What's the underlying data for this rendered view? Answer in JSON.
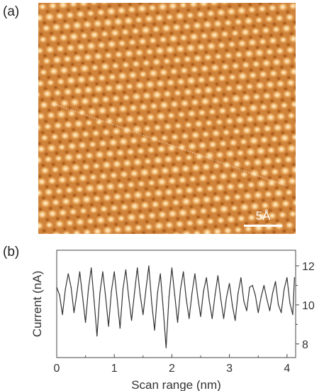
{
  "figure": {
    "panel_a_label": "(a)",
    "panel_b_label": "(b)",
    "scale_bar_label": "5Å"
  },
  "colors": {
    "stm_dark": "#b45f16",
    "stm_mid": "#e39a4c",
    "stm_light": "#fff3d6",
    "trace": "#333333"
  },
  "chart_data": {
    "type": "line",
    "xlabel": "Scan range (nm)",
    "ylabel": "Current (nA)",
    "xlim": [
      0,
      4.15
    ],
    "ylim": [
      7.3,
      12.8
    ],
    "x_ticks": [
      0,
      1,
      2,
      3,
      4
    ],
    "y_ticks": [
      8,
      10,
      12
    ],
    "y_axis_side": "right",
    "grid": false,
    "series": [
      {
        "x": [
          0.0,
          0.05,
          0.1,
          0.15,
          0.2,
          0.25,
          0.3,
          0.35,
          0.4,
          0.45,
          0.5,
          0.55,
          0.6,
          0.65,
          0.7,
          0.75,
          0.8,
          0.85,
          0.9,
          0.95,
          1.0,
          1.05,
          1.1,
          1.15,
          1.2,
          1.25,
          1.3,
          1.35,
          1.4,
          1.45,
          1.5,
          1.55,
          1.6,
          1.65,
          1.7,
          1.75,
          1.8,
          1.85,
          1.9,
          1.95,
          2.0,
          2.05,
          2.1,
          2.15,
          2.2,
          2.25,
          2.3,
          2.35,
          2.4,
          2.45,
          2.5,
          2.55,
          2.6,
          2.65,
          2.7,
          2.75,
          2.8,
          2.85,
          2.9,
          2.95,
          3.0,
          3.05,
          3.1,
          3.15,
          3.2,
          3.25,
          3.3,
          3.35,
          3.4,
          3.45,
          3.5,
          3.55,
          3.6,
          3.65,
          3.7,
          3.75,
          3.8,
          3.85,
          3.9,
          3.95,
          4.0,
          4.05,
          4.1,
          4.13
        ],
        "y": [
          10.9,
          10.5,
          9.5,
          10.8,
          11.6,
          10.9,
          9.6,
          10.6,
          11.7,
          10.4,
          9.1,
          10.8,
          11.9,
          10.2,
          8.4,
          10.6,
          11.7,
          10.4,
          8.9,
          10.7,
          11.7,
          10.3,
          8.8,
          10.8,
          11.8,
          10.4,
          9.2,
          10.6,
          11.9,
          10.5,
          9.5,
          10.8,
          12.0,
          10.1,
          8.7,
          10.6,
          11.6,
          9.8,
          7.8,
          10.4,
          11.9,
          10.5,
          9.1,
          10.8,
          11.7,
          10.3,
          9.3,
          10.6,
          11.6,
          10.4,
          9.4,
          10.7,
          11.4,
          10.2,
          9.3,
          10.5,
          11.5,
          10.3,
          9.3,
          10.4,
          11.1,
          10.0,
          9.2,
          10.6,
          11.4,
          10.2,
          9.7,
          10.9,
          11.0,
          10.5,
          9.6,
          10.4,
          11.0,
          10.3,
          9.7,
          10.6,
          11.2,
          10.0,
          9.6,
          10.8,
          11.4,
          10.1,
          9.5,
          11.4
        ]
      }
    ]
  }
}
